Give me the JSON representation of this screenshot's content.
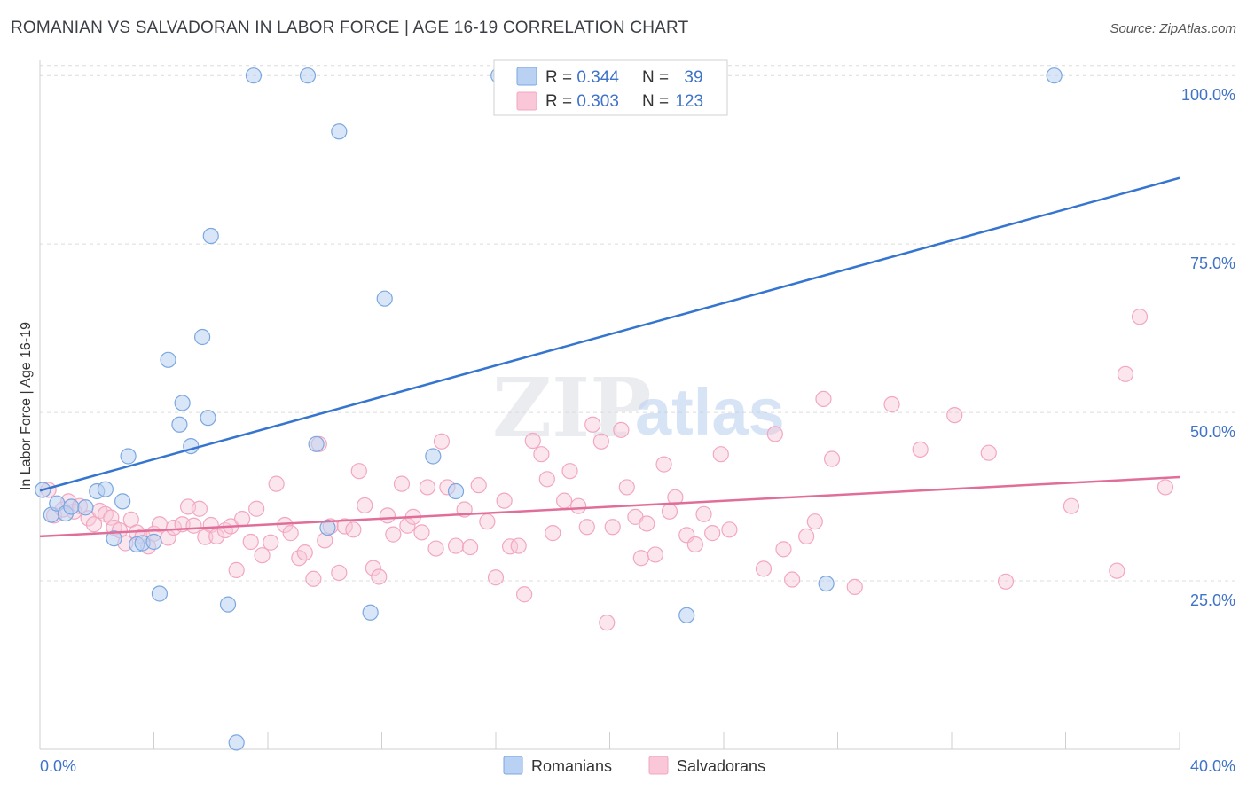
{
  "chart_data": {
    "type": "scatter",
    "title": "ROMANIAN VS SALVADORAN IN LABOR FORCE | AGE 16-19 CORRELATION CHART",
    "source": "Source: ZipAtlas.com",
    "ylabel": "In Labor Force | Age 16-19",
    "xlim": [
      0,
      40
    ],
    "ylim": [
      0,
      102
    ],
    "x_ticks_labeled": [
      "0.0%",
      "40.0%"
    ],
    "y_ticks": [
      {
        "value": 25,
        "label": "25.0%"
      },
      {
        "value": 50,
        "label": "50.0%"
      },
      {
        "value": 75,
        "label": "75.0%"
      },
      {
        "value": 100,
        "label": "100.0%"
      }
    ],
    "grid": "horizontal dashed",
    "legend_placement": "top-center",
    "watermark": {
      "zip": "ZIP",
      "atlas": "atlas"
    },
    "series": [
      {
        "name": "Romanians",
        "color": "#7ba7e0",
        "line_color": "#3575cf",
        "stats": {
          "r_label": "R = ",
          "r": "0.344",
          "n_label": "N = ",
          "n": "39"
        },
        "trend": {
          "x0": 0,
          "y0": 38.4,
          "x1": 40,
          "y1": 84.8
        },
        "points": [
          [
            0.1,
            38.5
          ],
          [
            0.4,
            34.8
          ],
          [
            0.6,
            36.5
          ],
          [
            0.9,
            35.0
          ],
          [
            1.1,
            36.0
          ],
          [
            1.6,
            35.9
          ],
          [
            2.0,
            38.3
          ],
          [
            2.3,
            38.6
          ],
          [
            2.6,
            31.3
          ],
          [
            2.9,
            36.8
          ],
          [
            3.1,
            43.5
          ],
          [
            3.4,
            30.4
          ],
          [
            3.6,
            30.6
          ],
          [
            4.0,
            30.8
          ],
          [
            4.2,
            23.1
          ],
          [
            4.5,
            57.8
          ],
          [
            4.9,
            48.2
          ],
          [
            5.0,
            51.4
          ],
          [
            5.3,
            45.0
          ],
          [
            5.7,
            61.2
          ],
          [
            5.9,
            49.2
          ],
          [
            6.0,
            76.2
          ],
          [
            6.6,
            21.5
          ],
          [
            6.9,
            1.0
          ],
          [
            7.5,
            100.0
          ],
          [
            9.4,
            100.0
          ],
          [
            9.7,
            45.3
          ],
          [
            10.1,
            32.9
          ],
          [
            10.5,
            91.7
          ],
          [
            11.6,
            20.3
          ],
          [
            12.1,
            66.9
          ],
          [
            13.8,
            43.5
          ],
          [
            14.6,
            38.3
          ],
          [
            16.1,
            100.0
          ],
          [
            16.2,
            100.0
          ],
          [
            22.7,
            19.9
          ],
          [
            27.6,
            24.6
          ],
          [
            35.6,
            100.0
          ]
        ]
      },
      {
        "name": "Salvadorans",
        "color": "#f2a7c0",
        "line_color": "#e06e98",
        "stats": {
          "r_label": "R = ",
          "r": "0.303",
          "n_label": "N = ",
          "n": "123"
        },
        "trend": {
          "x0": 0,
          "y0": 31.6,
          "x1": 40,
          "y1": 40.4
        },
        "points": [
          [
            0.3,
            38.5
          ],
          [
            0.5,
            34.7
          ],
          [
            0.8,
            35.6
          ],
          [
            1.0,
            36.8
          ],
          [
            1.2,
            35.3
          ],
          [
            1.4,
            36.1
          ],
          [
            1.7,
            34.3
          ],
          [
            1.9,
            33.4
          ],
          [
            2.1,
            35.4
          ],
          [
            2.3,
            34.9
          ],
          [
            2.5,
            34.4
          ],
          [
            2.6,
            32.9
          ],
          [
            2.8,
            32.5
          ],
          [
            3.0,
            30.6
          ],
          [
            3.2,
            34.1
          ],
          [
            3.4,
            32.2
          ],
          [
            3.6,
            31.6
          ],
          [
            3.8,
            30.1
          ],
          [
            4.0,
            32.0
          ],
          [
            4.2,
            33.4
          ],
          [
            4.5,
            31.4
          ],
          [
            4.7,
            32.9
          ],
          [
            5.0,
            33.4
          ],
          [
            5.2,
            36.0
          ],
          [
            5.4,
            33.2
          ],
          [
            5.6,
            35.7
          ],
          [
            5.8,
            31.5
          ],
          [
            6.0,
            33.3
          ],
          [
            6.2,
            31.6
          ],
          [
            6.5,
            32.5
          ],
          [
            6.7,
            33.1
          ],
          [
            6.9,
            26.6
          ],
          [
            7.1,
            34.2
          ],
          [
            7.4,
            30.8
          ],
          [
            7.6,
            35.7
          ],
          [
            7.8,
            28.8
          ],
          [
            8.1,
            30.7
          ],
          [
            8.3,
            39.4
          ],
          [
            8.6,
            33.3
          ],
          [
            8.8,
            32.1
          ],
          [
            9.1,
            28.4
          ],
          [
            9.3,
            29.2
          ],
          [
            9.6,
            25.3
          ],
          [
            9.8,
            45.3
          ],
          [
            10.0,
            31.0
          ],
          [
            10.2,
            33.1
          ],
          [
            10.5,
            26.2
          ],
          [
            10.7,
            33.1
          ],
          [
            11.0,
            32.6
          ],
          [
            11.2,
            41.3
          ],
          [
            11.4,
            36.2
          ],
          [
            11.7,
            26.9
          ],
          [
            11.9,
            25.6
          ],
          [
            12.2,
            34.7
          ],
          [
            12.4,
            31.9
          ],
          [
            12.7,
            39.4
          ],
          [
            12.9,
            33.2
          ],
          [
            13.1,
            34.5
          ],
          [
            13.4,
            32.2
          ],
          [
            13.6,
            38.9
          ],
          [
            13.9,
            29.8
          ],
          [
            14.1,
            45.7
          ],
          [
            14.3,
            38.9
          ],
          [
            14.6,
            30.2
          ],
          [
            14.9,
            35.6
          ],
          [
            15.1,
            30.0
          ],
          [
            15.4,
            39.2
          ],
          [
            15.7,
            33.8
          ],
          [
            16.0,
            25.5
          ],
          [
            16.3,
            36.9
          ],
          [
            16.5,
            30.1
          ],
          [
            16.8,
            30.2
          ],
          [
            17.0,
            23.0
          ],
          [
            17.3,
            45.8
          ],
          [
            17.6,
            43.8
          ],
          [
            17.8,
            40.1
          ],
          [
            18.0,
            32.1
          ],
          [
            18.4,
            36.9
          ],
          [
            18.6,
            41.3
          ],
          [
            18.9,
            36.1
          ],
          [
            19.2,
            33.0
          ],
          [
            19.4,
            48.2
          ],
          [
            19.7,
            45.7
          ],
          [
            19.9,
            18.8
          ],
          [
            20.1,
            33.0
          ],
          [
            20.4,
            47.4
          ],
          [
            20.6,
            38.9
          ],
          [
            20.9,
            34.5
          ],
          [
            21.1,
            28.4
          ],
          [
            21.3,
            33.5
          ],
          [
            21.6,
            28.9
          ],
          [
            21.9,
            42.3
          ],
          [
            22.1,
            35.3
          ],
          [
            22.3,
            37.4
          ],
          [
            22.7,
            31.8
          ],
          [
            23.0,
            30.4
          ],
          [
            23.3,
            34.9
          ],
          [
            23.6,
            32.1
          ],
          [
            23.9,
            43.8
          ],
          [
            24.2,
            32.6
          ],
          [
            25.4,
            26.8
          ],
          [
            25.8,
            46.8
          ],
          [
            26.1,
            29.7
          ],
          [
            26.4,
            25.2
          ],
          [
            26.9,
            31.6
          ],
          [
            27.2,
            33.8
          ],
          [
            27.5,
            52.0
          ],
          [
            27.8,
            43.1
          ],
          [
            28.6,
            24.1
          ],
          [
            29.9,
            51.2
          ],
          [
            30.9,
            44.5
          ],
          [
            32.1,
            49.6
          ],
          [
            33.3,
            44.0
          ],
          [
            33.9,
            24.9
          ],
          [
            36.2,
            36.1
          ],
          [
            37.8,
            26.5
          ],
          [
            38.1,
            55.7
          ],
          [
            38.6,
            64.2
          ],
          [
            39.5,
            38.9
          ]
        ]
      }
    ]
  }
}
